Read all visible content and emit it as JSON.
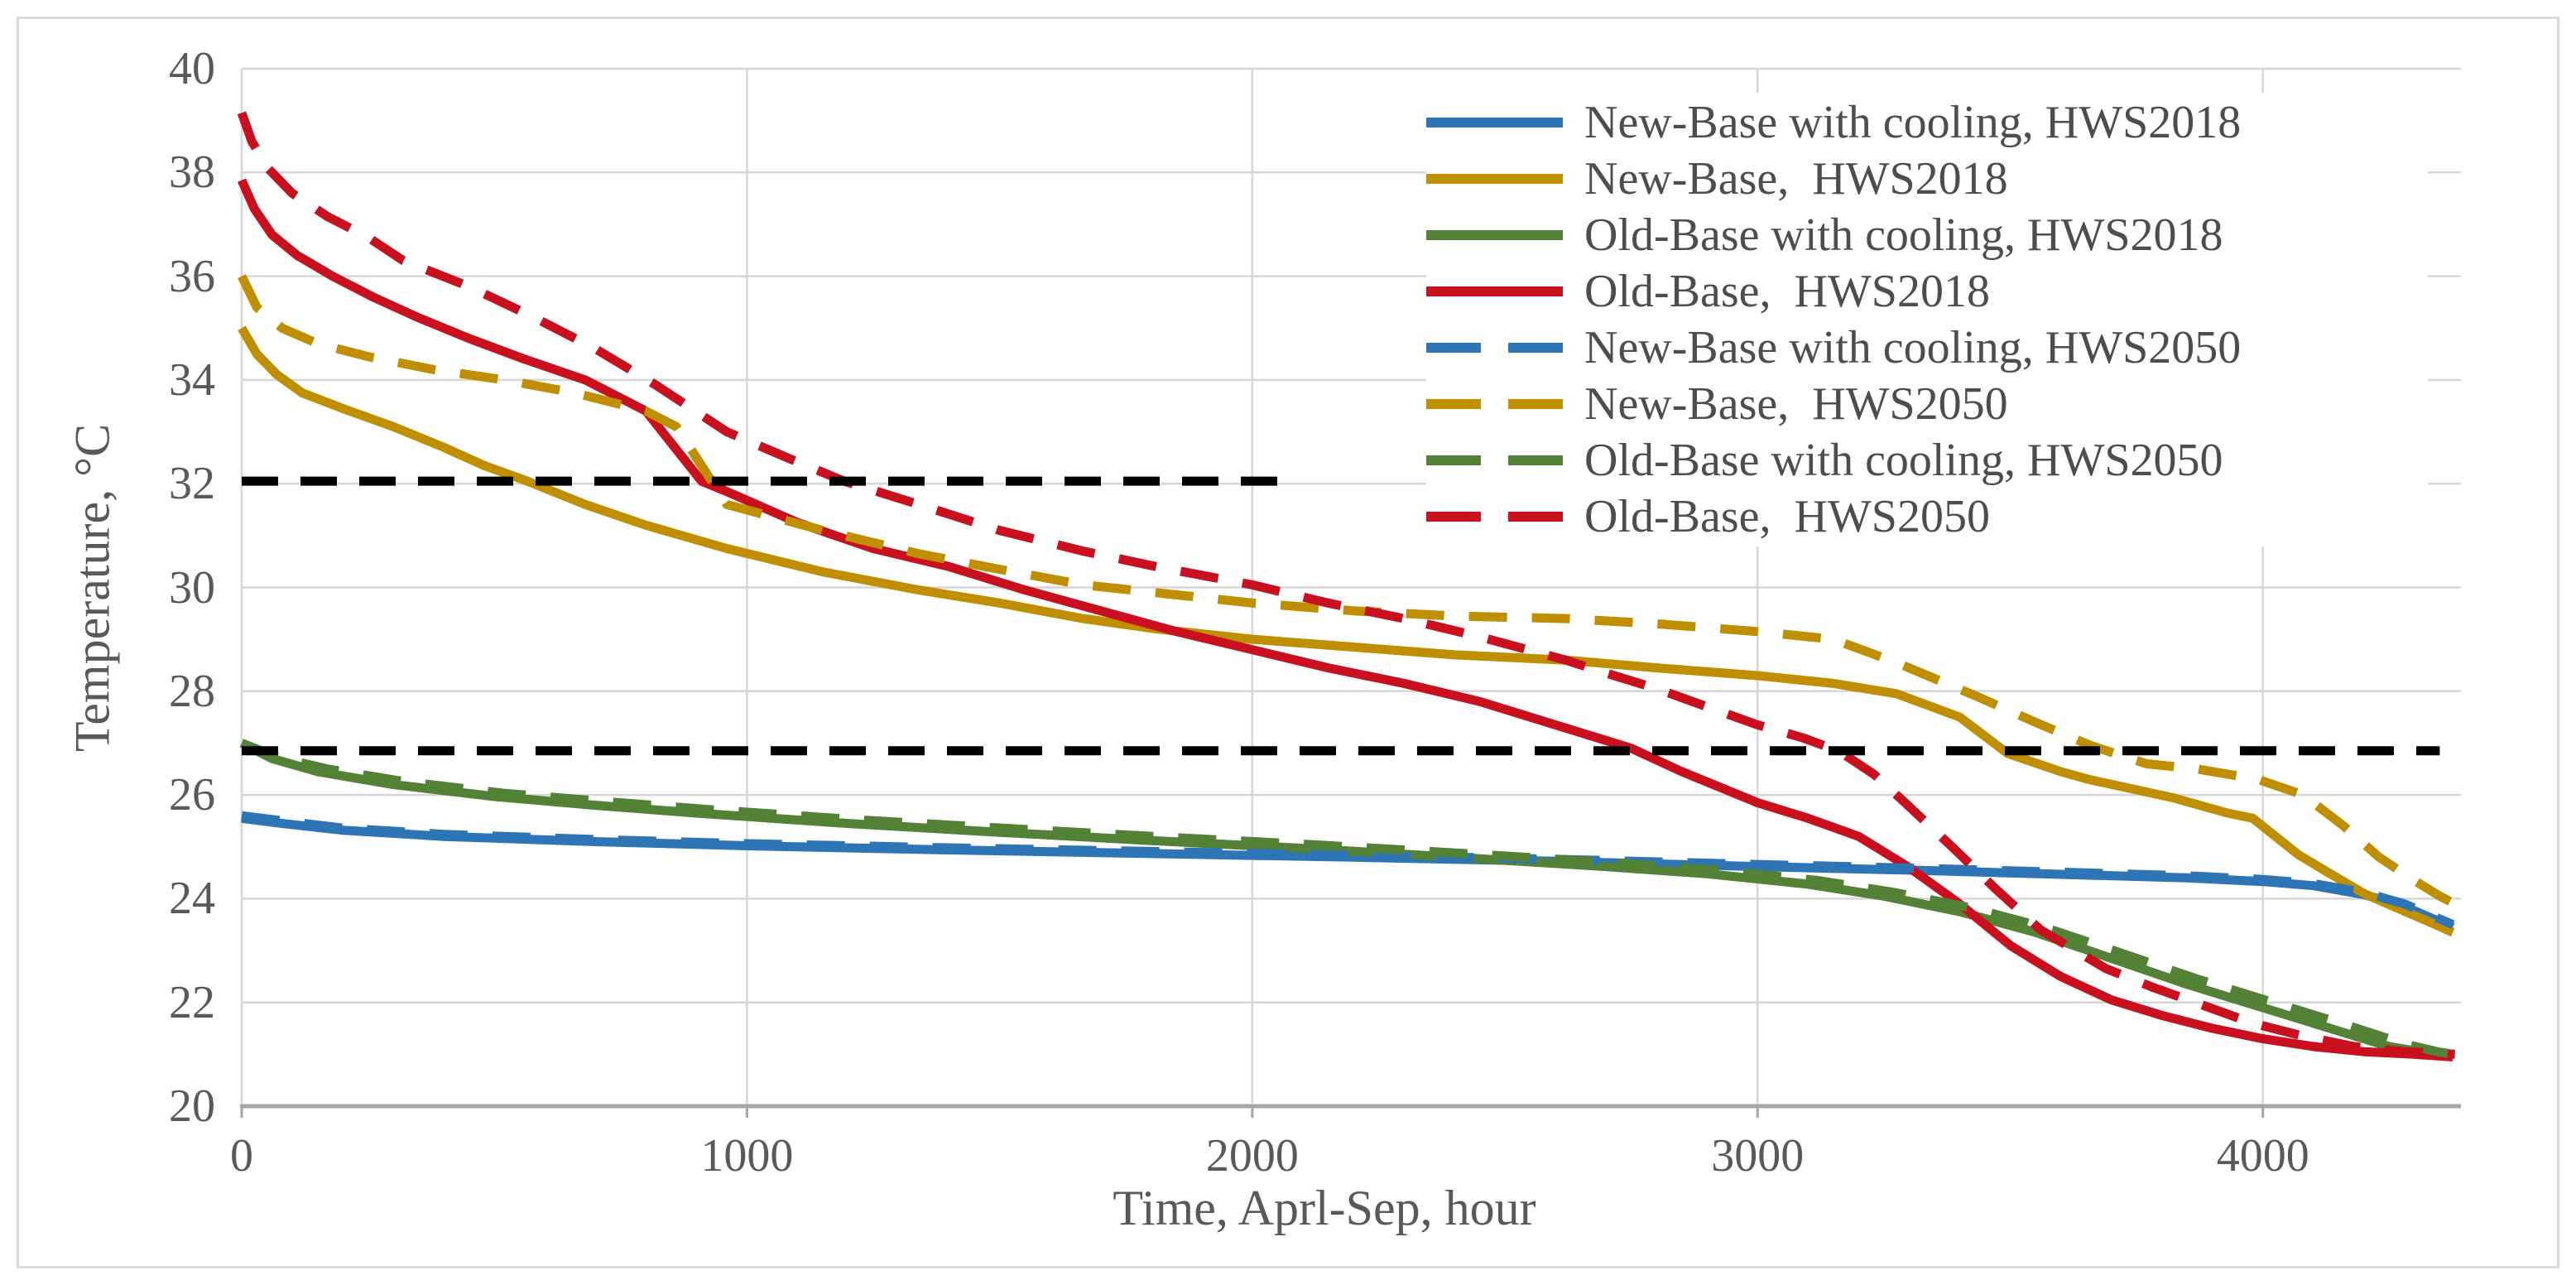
{
  "figure": {
    "background": "#FFFFFF",
    "border_color": "#D9D9D9"
  },
  "axes": {
    "y_title": "Temperature, °C",
    "x_title": "Time, Aprl-Sep, hour",
    "tick_color": "#595959",
    "grid_color": "#D6D6D6",
    "axis_line_color": "#A6A6A6"
  },
  "chart_data": {
    "type": "line",
    "title": "",
    "xlabel": "Time, Aprl-Sep, hour",
    "ylabel": "Temperature, °C",
    "xlim": [
      0,
      4392
    ],
    "ylim": [
      20,
      40
    ],
    "x_tick_values": [
      0,
      1000,
      2000,
      3000,
      4000
    ],
    "x_tick_labels": [
      "0",
      "1000",
      "2000",
      "3000",
      "4000"
    ],
    "y_tick_values": [
      40,
      38,
      36,
      34,
      32,
      30,
      28,
      26,
      24,
      22,
      20
    ],
    "y_tick_labels": [
      "40",
      "38",
      "36",
      "34",
      "32",
      "30",
      "28",
      "26",
      "24",
      "22",
      "20"
    ],
    "grid": true,
    "legend_position": "inside-top-right",
    "series": [
      {
        "name": "New-Base with cooling, HWS2018",
        "color": "#2E75B6",
        "dash": false,
        "points": [
          [
            0,
            25.55
          ],
          [
            80,
            25.45
          ],
          [
            200,
            25.32
          ],
          [
            400,
            25.2
          ],
          [
            700,
            25.1
          ],
          [
            1000,
            25.02
          ],
          [
            1400,
            24.94
          ],
          [
            1800,
            24.87
          ],
          [
            2200,
            24.8
          ],
          [
            2600,
            24.72
          ],
          [
            3000,
            24.62
          ],
          [
            3300,
            24.55
          ],
          [
            3600,
            24.47
          ],
          [
            3850,
            24.4
          ],
          [
            4000,
            24.33
          ],
          [
            4100,
            24.25
          ],
          [
            4200,
            24.08
          ],
          [
            4280,
            23.85
          ],
          [
            4340,
            23.6
          ],
          [
            4376,
            23.45
          ]
        ]
      },
      {
        "name": "New-Base,  HWS2018",
        "color": "#BF8F00",
        "dash": false,
        "points": [
          [
            0,
            35.0
          ],
          [
            30,
            34.5
          ],
          [
            70,
            34.1
          ],
          [
            120,
            33.75
          ],
          [
            200,
            33.45
          ],
          [
            300,
            33.1
          ],
          [
            400,
            32.7
          ],
          [
            480,
            32.35
          ],
          [
            565,
            32.05
          ],
          [
            680,
            31.6
          ],
          [
            800,
            31.2
          ],
          [
            960,
            30.75
          ],
          [
            1150,
            30.3
          ],
          [
            1340,
            29.95
          ],
          [
            1500,
            29.7
          ],
          [
            1665,
            29.4
          ],
          [
            1810,
            29.2
          ],
          [
            2000,
            29.0
          ],
          [
            2200,
            28.85
          ],
          [
            2400,
            28.7
          ],
          [
            2620,
            28.6
          ],
          [
            2800,
            28.45
          ],
          [
            3000,
            28.3
          ],
          [
            3150,
            28.15
          ],
          [
            3275,
            27.95
          ],
          [
            3400,
            27.5
          ],
          [
            3495,
            26.8
          ],
          [
            3600,
            26.45
          ],
          [
            3655,
            26.3
          ],
          [
            3820,
            25.95
          ],
          [
            3930,
            25.65
          ],
          [
            3980,
            25.55
          ],
          [
            4070,
            24.85
          ],
          [
            4130,
            24.5
          ],
          [
            4200,
            24.1
          ],
          [
            4270,
            23.8
          ],
          [
            4330,
            23.55
          ],
          [
            4376,
            23.35
          ]
        ]
      },
      {
        "name": "Old-Base with cooling, HWS2018",
        "color": "#538135",
        "dash": false,
        "points": [
          [
            0,
            27.0
          ],
          [
            60,
            26.7
          ],
          [
            150,
            26.45
          ],
          [
            300,
            26.2
          ],
          [
            500,
            25.97
          ],
          [
            700,
            25.8
          ],
          [
            900,
            25.65
          ],
          [
            1200,
            25.45
          ],
          [
            1500,
            25.28
          ],
          [
            1800,
            25.12
          ],
          [
            2100,
            24.97
          ],
          [
            2400,
            24.8
          ],
          [
            2700,
            24.62
          ],
          [
            2900,
            24.48
          ],
          [
            3100,
            24.28
          ],
          [
            3250,
            24.05
          ],
          [
            3400,
            23.75
          ],
          [
            3550,
            23.35
          ],
          [
            3700,
            22.85
          ],
          [
            3850,
            22.35
          ],
          [
            4000,
            21.9
          ],
          [
            4150,
            21.45
          ],
          [
            4250,
            21.15
          ],
          [
            4330,
            21.02
          ],
          [
            4376,
            21.0
          ]
        ]
      },
      {
        "name": "Old-Base,  HWS2018",
        "color": "#C9101E",
        "dash": false,
        "points": [
          [
            0,
            37.85
          ],
          [
            25,
            37.3
          ],
          [
            60,
            36.8
          ],
          [
            110,
            36.4
          ],
          [
            180,
            36.0
          ],
          [
            260,
            35.6
          ],
          [
            350,
            35.2
          ],
          [
            450,
            34.8
          ],
          [
            560,
            34.4
          ],
          [
            680,
            34.0
          ],
          [
            800,
            33.4
          ],
          [
            910,
            32.05
          ],
          [
            960,
            31.85
          ],
          [
            1100,
            31.25
          ],
          [
            1250,
            30.75
          ],
          [
            1400,
            30.4
          ],
          [
            1550,
            29.95
          ],
          [
            1700,
            29.55
          ],
          [
            1850,
            29.15
          ],
          [
            2000,
            28.8
          ],
          [
            2150,
            28.45
          ],
          [
            2300,
            28.15
          ],
          [
            2450,
            27.8
          ],
          [
            2600,
            27.35
          ],
          [
            2750,
            26.9
          ],
          [
            2850,
            26.45
          ],
          [
            3000,
            25.85
          ],
          [
            3100,
            25.55
          ],
          [
            3200,
            25.2
          ],
          [
            3300,
            24.6
          ],
          [
            3400,
            23.9
          ],
          [
            3500,
            23.1
          ],
          [
            3600,
            22.5
          ],
          [
            3700,
            22.05
          ],
          [
            3800,
            21.75
          ],
          [
            3900,
            21.5
          ],
          [
            4000,
            21.3
          ],
          [
            4100,
            21.15
          ],
          [
            4200,
            21.05
          ],
          [
            4300,
            21.0
          ],
          [
            4376,
            20.95
          ]
        ]
      },
      {
        "name": "New-Base with cooling, HWS2050",
        "color": "#2E75B6",
        "dash": true,
        "points": [
          [
            0,
            25.6
          ],
          [
            80,
            25.5
          ],
          [
            200,
            25.36
          ],
          [
            400,
            25.24
          ],
          [
            700,
            25.14
          ],
          [
            1000,
            25.06
          ],
          [
            1400,
            24.98
          ],
          [
            1800,
            24.91
          ],
          [
            2200,
            24.84
          ],
          [
            2600,
            24.76
          ],
          [
            3000,
            24.66
          ],
          [
            3300,
            24.59
          ],
          [
            3600,
            24.51
          ],
          [
            3850,
            24.44
          ],
          [
            4000,
            24.37
          ],
          [
            4100,
            24.29
          ],
          [
            4200,
            24.12
          ],
          [
            4280,
            23.9
          ],
          [
            4340,
            23.65
          ],
          [
            4376,
            23.5
          ]
        ]
      },
      {
        "name": "New-Base,  HWS2050",
        "color": "#BF8F00",
        "dash": true,
        "points": [
          [
            0,
            36.0
          ],
          [
            30,
            35.4
          ],
          [
            80,
            35.0
          ],
          [
            150,
            34.7
          ],
          [
            250,
            34.45
          ],
          [
            380,
            34.2
          ],
          [
            520,
            34.0
          ],
          [
            660,
            33.75
          ],
          [
            800,
            33.4
          ],
          [
            860,
            33.1
          ],
          [
            960,
            31.6
          ],
          [
            1150,
            31.1
          ],
          [
            1340,
            30.65
          ],
          [
            1500,
            30.35
          ],
          [
            1665,
            30.05
          ],
          [
            1810,
            29.9
          ],
          [
            2000,
            29.7
          ],
          [
            2200,
            29.55
          ],
          [
            2400,
            29.45
          ],
          [
            2620,
            29.4
          ],
          [
            2800,
            29.3
          ],
          [
            3000,
            29.15
          ],
          [
            3150,
            29.0
          ],
          [
            3275,
            28.55
          ],
          [
            3434,
            27.9
          ],
          [
            3550,
            27.4
          ],
          [
            3660,
            26.95
          ],
          [
            3770,
            26.6
          ],
          [
            3870,
            26.5
          ],
          [
            3990,
            26.3
          ],
          [
            4080,
            26.0
          ],
          [
            4160,
            25.4
          ],
          [
            4230,
            24.8
          ],
          [
            4300,
            24.35
          ],
          [
            4350,
            24.05
          ],
          [
            4380,
            23.9
          ]
        ]
      },
      {
        "name": "Old-Base with cooling, HWS2050",
        "color": "#538135",
        "dash": true,
        "points": [
          [
            0,
            27.0
          ],
          [
            70,
            26.73
          ],
          [
            170,
            26.5
          ],
          [
            320,
            26.26
          ],
          [
            520,
            26.03
          ],
          [
            720,
            25.87
          ],
          [
            920,
            25.72
          ],
          [
            1220,
            25.52
          ],
          [
            1520,
            25.35
          ],
          [
            1820,
            25.19
          ],
          [
            2120,
            25.04
          ],
          [
            2420,
            24.87
          ],
          [
            2720,
            24.69
          ],
          [
            2920,
            24.55
          ],
          [
            3120,
            24.35
          ],
          [
            3270,
            24.12
          ],
          [
            3420,
            23.83
          ],
          [
            3570,
            23.44
          ],
          [
            3720,
            22.95
          ],
          [
            3870,
            22.45
          ],
          [
            4020,
            22.0
          ],
          [
            4170,
            21.55
          ],
          [
            4280,
            21.2
          ],
          [
            4350,
            21.04
          ],
          [
            4380,
            21.0
          ]
        ]
      },
      {
        "name": "Old-Base,  HWS2050",
        "color": "#C9101E",
        "dash": true,
        "points": [
          [
            0,
            39.15
          ],
          [
            20,
            38.6
          ],
          [
            50,
            38.1
          ],
          [
            100,
            37.6
          ],
          [
            170,
            37.15
          ],
          [
            250,
            36.75
          ],
          [
            320,
            36.3
          ],
          [
            450,
            35.8
          ],
          [
            580,
            35.2
          ],
          [
            700,
            34.6
          ],
          [
            820,
            33.9
          ],
          [
            960,
            33.0
          ],
          [
            1080,
            32.5
          ],
          [
            1192,
            32.05
          ],
          [
            1340,
            31.6
          ],
          [
            1500,
            31.1
          ],
          [
            1665,
            30.7
          ],
          [
            1810,
            30.4
          ],
          [
            2000,
            30.05
          ],
          [
            2150,
            29.7
          ],
          [
            2300,
            29.4
          ],
          [
            2450,
            29.05
          ],
          [
            2620,
            28.6
          ],
          [
            2700,
            28.35
          ],
          [
            2800,
            28.05
          ],
          [
            2900,
            27.7
          ],
          [
            3000,
            27.35
          ],
          [
            3090,
            27.1
          ],
          [
            3160,
            26.85
          ],
          [
            3230,
            26.4
          ],
          [
            3292,
            25.85
          ],
          [
            3385,
            25.0
          ],
          [
            3470,
            24.2
          ],
          [
            3560,
            23.4
          ],
          [
            3690,
            22.65
          ],
          [
            3780,
            22.3
          ],
          [
            3880,
            21.95
          ],
          [
            3980,
            21.6
          ],
          [
            4080,
            21.35
          ],
          [
            4180,
            21.15
          ],
          [
            4280,
            21.05
          ],
          [
            4380,
            21.0
          ]
        ]
      }
    ],
    "reference_lines": [
      {
        "name": "upper-temp-limit",
        "color": "#000000",
        "dash": true,
        "points": [
          [
            0,
            32.05
          ],
          [
            2075,
            32.05
          ]
        ]
      },
      {
        "name": "lower-temp-limit",
        "color": "#000000",
        "dash": true,
        "points": [
          [
            0,
            26.85
          ],
          [
            4350,
            26.85
          ]
        ]
      }
    ]
  },
  "legend": {
    "items": [
      {
        "label": "New-Base with cooling, HWS2018",
        "color": "#2E75B6",
        "dash": false
      },
      {
        "label": "New-Base,  HWS2018",
        "color": "#BF8F00",
        "dash": false
      },
      {
        "label": "Old-Base with cooling, HWS2018",
        "color": "#538135",
        "dash": false
      },
      {
        "label": "Old-Base,  HWS2018",
        "color": "#C9101E",
        "dash": false
      },
      {
        "label": "New-Base with cooling, HWS2050",
        "color": "#2E75B6",
        "dash": true
      },
      {
        "label": "New-Base,  HWS2050",
        "color": "#BF8F00",
        "dash": true
      },
      {
        "label": "Old-Base with cooling, HWS2050",
        "color": "#538135",
        "dash": true
      },
      {
        "label": "Old-Base,  HWS2050",
        "color": "#C9101E",
        "dash": true
      }
    ]
  }
}
